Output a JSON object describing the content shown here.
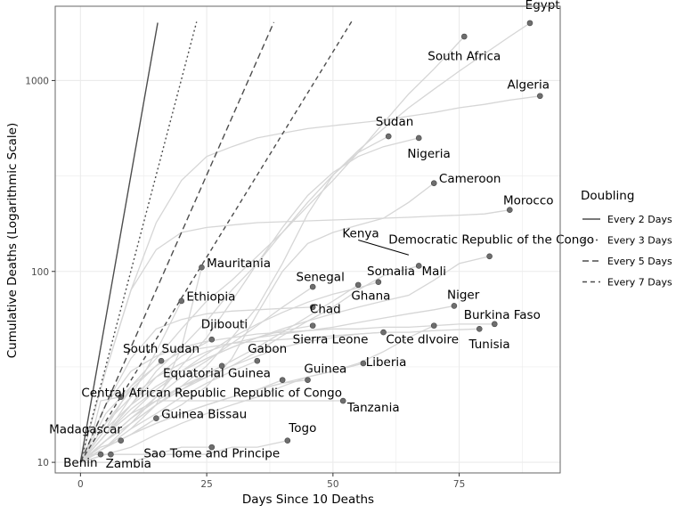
{
  "chart_data": {
    "type": "line",
    "title": "",
    "xlabel": "Days Since 10 Deaths",
    "ylabel": "Cumulative Deaths (Logarithmic Scale)",
    "xlim": [
      -5,
      95
    ],
    "ylim": [
      8.8,
      2450
    ],
    "y_scale": "log10",
    "grid": true,
    "x_ticks": [
      0,
      25,
      50,
      75
    ],
    "x_tick_labels": [
      "0",
      "25",
      "50",
      "75"
    ],
    "y_ticks": [
      10,
      100,
      1000
    ],
    "y_tick_labels": [
      "10",
      "100",
      "1000"
    ],
    "legend": {
      "title": "Doubling",
      "placement": "right",
      "entries": [
        "Every 2 Days",
        "Every 3 Days",
        "Every 5 Days",
        "Every 7 Days"
      ]
    },
    "reference_lines": [
      {
        "label": "Every 2 Days",
        "doubling_days": 2,
        "x_end": 15.3,
        "dash": "solid"
      },
      {
        "label": "Every 3 Days",
        "doubling_days": 3,
        "x_end": 23.0,
        "dash": "dot"
      },
      {
        "label": "Every 5 Days",
        "doubling_days": 5,
        "x_end": 38.3,
        "dash": "longdash"
      },
      {
        "label": "Every 7 Days",
        "doubling_days": 7,
        "x_end": 53.7,
        "dash": "dash"
      }
    ],
    "series": [
      {
        "name": "Egypt",
        "x": [
          0,
          5,
          10,
          15,
          20,
          25,
          30,
          35,
          40,
          45,
          50,
          55,
          60,
          65,
          70,
          75,
          80,
          85,
          89
        ],
        "y": [
          10,
          14,
          20,
          30,
          40,
          55,
          80,
          110,
          160,
          230,
          320,
          430,
          560,
          720,
          900,
          1120,
          1380,
          1700,
          2000
        ]
      },
      {
        "name": "South Africa",
        "x": [
          0,
          5,
          10,
          15,
          20,
          25,
          30,
          35,
          40,
          45,
          50,
          55,
          60,
          65,
          70,
          76
        ],
        "y": [
          10,
          15,
          25,
          35,
          50,
          70,
          90,
          120,
          160,
          220,
          300,
          420,
          600,
          850,
          1150,
          1700
        ]
      },
      {
        "name": "Algeria",
        "x": [
          0,
          5,
          10,
          15,
          20,
          25,
          30,
          35,
          40,
          45,
          50,
          55,
          60,
          65,
          70,
          75,
          80,
          85,
          91
        ],
        "y": [
          10,
          30,
          80,
          180,
          300,
          400,
          450,
          500,
          530,
          560,
          580,
          600,
          620,
          650,
          680,
          720,
          750,
          790,
          830
        ]
      },
      {
        "name": "Sudan",
        "x": [
          0,
          5,
          10,
          15,
          20,
          25,
          30,
          35,
          40,
          45,
          50,
          55,
          61
        ],
        "y": [
          10,
          13,
          16,
          20,
          25,
          32,
          45,
          65,
          110,
          200,
          320,
          420,
          510
        ]
      },
      {
        "name": "Nigeria",
        "x": [
          0,
          5,
          10,
          15,
          20,
          25,
          30,
          35,
          40,
          45,
          50,
          55,
          60,
          67
        ],
        "y": [
          10,
          12,
          16,
          22,
          32,
          45,
          70,
          110,
          170,
          250,
          330,
          400,
          450,
          500
        ]
      },
      {
        "name": "Cameroon",
        "x": [
          0,
          5,
          10,
          15,
          20,
          25,
          30,
          35,
          40,
          45,
          50,
          55,
          60,
          65,
          70
        ],
        "y": [
          10,
          12,
          14,
          17,
          20,
          25,
          35,
          60,
          100,
          140,
          160,
          175,
          190,
          230,
          290
        ]
      },
      {
        "name": "Morocco",
        "x": [
          0,
          5,
          10,
          15,
          20,
          25,
          30,
          35,
          40,
          45,
          50,
          55,
          60,
          65,
          70,
          75,
          80,
          85
        ],
        "y": [
          10,
          30,
          80,
          130,
          160,
          170,
          175,
          180,
          182,
          184,
          186,
          188,
          190,
          192,
          195,
          197,
          200,
          210
        ]
      },
      {
        "name": "Kenya",
        "x": [
          0,
          5,
          10,
          15,
          20,
          25,
          30,
          35,
          40,
          45,
          50,
          55,
          60,
          65,
          70
        ],
        "y": [
          10,
          11,
          12,
          14,
          16,
          18,
          20,
          22,
          25,
          28,
          30,
          33,
          38,
          45,
          52
        ]
      },
      {
        "name": "Democratic Republic of the Congo",
        "x": [
          0,
          5,
          10,
          15,
          20,
          25,
          30,
          35,
          40,
          45,
          50,
          55,
          60,
          65,
          70,
          75,
          81
        ],
        "y": [
          10,
          15,
          20,
          25,
          30,
          35,
          40,
          45,
          50,
          55,
          60,
          65,
          70,
          75,
          90,
          110,
          120
        ]
      },
      {
        "name": "Mali",
        "x": [
          0,
          5,
          10,
          15,
          20,
          25,
          30,
          35,
          40,
          45,
          50,
          55,
          60,
          67
        ],
        "y": [
          10,
          13,
          17,
          21,
          25,
          28,
          32,
          38,
          46,
          55,
          65,
          80,
          95,
          107
        ]
      },
      {
        "name": "Mauritania",
        "x": [
          0,
          5,
          10,
          15,
          20,
          24
        ],
        "y": [
          10,
          12,
          15,
          20,
          40,
          105
        ]
      },
      {
        "name": "Ethiopia",
        "x": [
          0,
          5,
          10,
          15,
          20
        ],
        "y": [
          10,
          14,
          22,
          38,
          70
        ]
      },
      {
        "name": "Senegal",
        "x": [
          0,
          5,
          10,
          15,
          20,
          25,
          30,
          35,
          40,
          46
        ],
        "y": [
          10,
          13,
          17,
          22,
          28,
          34,
          42,
          52,
          65,
          83
        ]
      },
      {
        "name": "Somalia",
        "x": [
          0,
          5,
          10,
          15,
          20,
          25,
          30,
          35,
          40,
          45,
          50,
          55,
          59
        ],
        "y": [
          10,
          14,
          18,
          24,
          30,
          37,
          45,
          53,
          61,
          69,
          76,
          82,
          88
        ]
      },
      {
        "name": "Ghana",
        "x": [
          0,
          5,
          10,
          15,
          20,
          25,
          30,
          35,
          40,
          45,
          50,
          55
        ],
        "y": [
          10,
          13,
          16,
          20,
          24,
          29,
          34,
          40,
          48,
          58,
          70,
          85
        ]
      },
      {
        "name": "Chad",
        "x": [
          0,
          5,
          10,
          15,
          20,
          25,
          30,
          35,
          40,
          46
        ],
        "y": [
          10,
          20,
          35,
          50,
          56,
          60,
          62,
          63,
          64,
          65
        ]
      },
      {
        "name": "Niger",
        "x": [
          0,
          5,
          10,
          15,
          20,
          25,
          30,
          35,
          40,
          45,
          50,
          55,
          60,
          65,
          70,
          74
        ],
        "y": [
          10,
          16,
          22,
          28,
          33,
          38,
          42,
          45,
          47,
          49,
          51,
          54,
          57,
          60,
          63,
          66
        ]
      },
      {
        "name": "Burkina Faso",
        "x": [
          0,
          5,
          10,
          15,
          20,
          25,
          30,
          35,
          40,
          45,
          50,
          55,
          60,
          65,
          70,
          75,
          82
        ],
        "y": [
          10,
          20,
          30,
          36,
          40,
          43,
          45,
          47,
          48,
          49,
          50,
          50,
          51,
          51,
          52,
          53,
          53
        ]
      },
      {
        "name": "Tunisia",
        "x": [
          0,
          5,
          10,
          15,
          20,
          25,
          30,
          35,
          40,
          45,
          50,
          55,
          60,
          65,
          70,
          79
        ],
        "y": [
          10,
          18,
          25,
          32,
          38,
          40,
          42,
          43,
          44,
          45,
          46,
          47,
          48,
          48,
          49,
          50
        ]
      },
      {
        "name": "Sierra Leone",
        "x": [
          0,
          5,
          10,
          15,
          20,
          25,
          30,
          35,
          40,
          46
        ],
        "y": [
          10,
          14,
          19,
          24,
          30,
          35,
          40,
          45,
          49,
          52
        ]
      },
      {
        "name": "Cote dIvoire",
        "x": [
          0,
          5,
          10,
          15,
          20,
          25,
          30,
          35,
          40,
          45,
          50,
          55,
          60
        ],
        "y": [
          10,
          13,
          16,
          20,
          24,
          28,
          32,
          36,
          40,
          43,
          45,
          47,
          48
        ]
      },
      {
        "name": "Djibouti",
        "x": [
          0,
          5,
          10,
          15,
          20,
          26
        ],
        "y": [
          10,
          14,
          20,
          28,
          36,
          44
        ]
      },
      {
        "name": "South Sudan",
        "x": [
          0,
          5,
          10,
          16
        ],
        "y": [
          10,
          16,
          24,
          34
        ]
      },
      {
        "name": "Gabon",
        "x": [
          0,
          5,
          10,
          15,
          20,
          25,
          30,
          35
        ],
        "y": [
          10,
          12,
          15,
          18,
          22,
          26,
          30,
          34
        ]
      },
      {
        "name": "Equatorial Guinea",
        "x": [
          0,
          5,
          10,
          15,
          20,
          25,
          28
        ],
        "y": [
          10,
          13,
          17,
          21,
          25,
          29,
          32
        ]
      },
      {
        "name": "Liberia",
        "x": [
          0,
          5,
          10,
          15,
          20,
          25,
          30,
          35,
          40,
          45,
          50,
          56
        ],
        "y": [
          10,
          12,
          14,
          16,
          18,
          20,
          22,
          24,
          26,
          28,
          30,
          33
        ]
      },
      {
        "name": "Guinea",
        "x": [
          0,
          5,
          10,
          15,
          20,
          25,
          30,
          35,
          40,
          45
        ],
        "y": [
          10,
          12,
          14,
          16,
          18,
          20,
          22,
          24,
          26,
          27
        ]
      },
      {
        "name": "Republic of Congo",
        "x": [
          0,
          5,
          10,
          15,
          20,
          25,
          30,
          35,
          40
        ],
        "y": [
          10,
          12,
          14,
          16,
          18,
          20,
          22,
          24,
          27
        ]
      },
      {
        "name": "Tanzania",
        "x": [
          0,
          5,
          10,
          15,
          20,
          25,
          30,
          35,
          40,
          45,
          52
        ],
        "y": [
          10,
          14,
          18,
          21,
          21,
          21,
          21,
          21,
          21,
          21,
          21
        ]
      },
      {
        "name": "Central African Republic",
        "x": [
          0,
          2,
          4,
          8
        ],
        "y": [
          10,
          13,
          21,
          22
        ]
      },
      {
        "name": "Guinea Bissau",
        "x": [
          0,
          5,
          10,
          15
        ],
        "y": [
          10,
          12,
          14,
          17
        ]
      },
      {
        "name": "Madagascar",
        "x": [
          0,
          2,
          4,
          8
        ],
        "y": [
          10,
          11,
          12,
          13
        ]
      },
      {
        "name": "Togo",
        "x": [
          0,
          5,
          10,
          15,
          20,
          25,
          30,
          35,
          41
        ],
        "y": [
          10,
          10,
          10,
          11,
          11,
          11,
          12,
          12,
          13
        ]
      },
      {
        "name": "Sao Tome and Principe",
        "x": [
          0,
          5,
          10,
          15,
          20,
          26
        ],
        "y": [
          10,
          11,
          11,
          11,
          12,
          12
        ]
      },
      {
        "name": "Benin",
        "x": [
          0,
          2,
          4
        ],
        "y": [
          10,
          11,
          11
        ]
      },
      {
        "name": "Zambia",
        "x": [
          0,
          3,
          6
        ],
        "y": [
          10,
          11,
          11
        ]
      }
    ],
    "labels": [
      {
        "text": "Egypt",
        "x": 91.5,
        "y": 2370,
        "anchor": "middle"
      },
      {
        "text": "South Africa",
        "x": 76,
        "y": 1280,
        "anchor": "middle"
      },
      {
        "text": "Algeria",
        "x": 88.7,
        "y": 905,
        "anchor": "middle"
      },
      {
        "text": "Sudan",
        "x": 62.2,
        "y": 580,
        "anchor": "middle"
      },
      {
        "text": "Nigeria",
        "x": 69,
        "y": 395,
        "anchor": "middle"
      },
      {
        "text": "Cameroon",
        "x": 71,
        "y": 292,
        "anchor": "start"
      },
      {
        "text": "Morocco",
        "x": 88.7,
        "y": 225,
        "anchor": "middle"
      },
      {
        "text": "Kenya",
        "x": 55.5,
        "y": 151,
        "anchor": "middle"
      },
      {
        "text": "Democratic Republic of the Congo",
        "x": 61,
        "y": 140,
        "anchor": "start"
      },
      {
        "text": "Mali",
        "x": 70,
        "y": 95.5,
        "anchor": "middle"
      },
      {
        "text": "Mauritania",
        "x": 25,
        "y": 105,
        "anchor": "start"
      },
      {
        "text": "Ethiopia",
        "x": 21,
        "y": 70.5,
        "anchor": "start"
      },
      {
        "text": "Senegal",
        "x": 47.5,
        "y": 89,
        "anchor": "middle"
      },
      {
        "text": "Somalia",
        "x": 61.5,
        "y": 95.5,
        "anchor": "middle"
      },
      {
        "text": "Ghana",
        "x": 57.5,
        "y": 71,
        "anchor": "middle"
      },
      {
        "text": "Chad",
        "x": 48.5,
        "y": 60.5,
        "anchor": "middle"
      },
      {
        "text": "Niger",
        "x": 75.8,
        "y": 72,
        "anchor": "middle"
      },
      {
        "text": "Burkina Faso",
        "x": 83.5,
        "y": 56.5,
        "anchor": "middle"
      },
      {
        "text": "Tunisia",
        "x": 81,
        "y": 39.5,
        "anchor": "middle"
      },
      {
        "text": "Sierra Leone",
        "x": 49.5,
        "y": 42,
        "anchor": "middle"
      },
      {
        "text": "Cote dIvoire",
        "x": 60.5,
        "y": 42,
        "anchor": "start"
      },
      {
        "text": "Djibouti",
        "x": 28.5,
        "y": 50.5,
        "anchor": "middle"
      },
      {
        "text": "South Sudan",
        "x": 16,
        "y": 37.5,
        "anchor": "middle"
      },
      {
        "text": "Gabon",
        "x": 37,
        "y": 37.5,
        "anchor": "middle"
      },
      {
        "text": "Equatorial Guinea",
        "x": 27,
        "y": 28,
        "anchor": "middle"
      },
      {
        "text": "Liberia",
        "x": 56.5,
        "y": 32,
        "anchor": "start"
      },
      {
        "text": "Guinea",
        "x": 48.5,
        "y": 29.5,
        "anchor": "middle"
      },
      {
        "text": "Republic of Congo",
        "x": 41,
        "y": 22,
        "anchor": "middle"
      },
      {
        "text": "Tanzania",
        "x": 58,
        "y": 18.5,
        "anchor": "middle"
      },
      {
        "text": "Central African Republic",
        "x": 14.5,
        "y": 22,
        "anchor": "middle"
      },
      {
        "text": "Guinea Bissau",
        "x": 16,
        "y": 17,
        "anchor": "start"
      },
      {
        "text": "Madagascar",
        "x": 1,
        "y": 14.2,
        "anchor": "middle"
      },
      {
        "text": "Togo",
        "x": 44,
        "y": 14.4,
        "anchor": "middle"
      },
      {
        "text": "Sao Tome and Principe",
        "x": 26,
        "y": 10.6,
        "anchor": "middle"
      },
      {
        "text": "Benin",
        "x": 0,
        "y": 9.5,
        "anchor": "middle"
      },
      {
        "text": "Zambia",
        "x": 9.5,
        "y": 9.4,
        "anchor": "middle"
      }
    ],
    "leader_lines": [
      {
        "from_label": "Kenya",
        "x1": 55,
        "y1": 146,
        "x2": 65,
        "y2": 122
      }
    ]
  },
  "colors": {
    "panel_border": "#666666",
    "grid": "#ebebeb",
    "country_line": "#d6d6d6",
    "point_fill": "#6e6e6e",
    "point_stroke": "#444444",
    "reference_line": "#4d4d4d",
    "text": "#000000",
    "tick_text": "#4d4d4d"
  }
}
